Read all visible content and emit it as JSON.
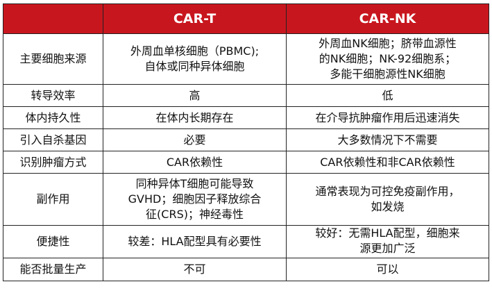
{
  "header": {
    "corner": "",
    "col1": "CAR-T",
    "col2": "CAR-NK"
  },
  "colors": {
    "header_bg": "#c8161e",
    "header_text": "#ffffff"
  },
  "rows": [
    {
      "label": "主要细胞来源",
      "cart": "外周血单核细胞（PBMC);\n自体或同种异体细胞",
      "carnk": "外周血NK细胞；脐带血源性\n的NK细胞；NK-92细胞系；\n多能干细胞源性NK细胞"
    },
    {
      "label": "转导效率",
      "cart": "高",
      "carnk": "低"
    },
    {
      "label": "体内持久性",
      "cart": "在体内长期存在",
      "carnk": "在介导抗肿瘤作用后迅速消失"
    },
    {
      "label": "引入自杀基因",
      "cart": "必要",
      "carnk": "大多数情况下不需要"
    },
    {
      "label": "识别肿瘤方式",
      "cart": "CAR依赖性",
      "carnk": "CAR依赖性和非CAR依赖性"
    },
    {
      "label": "副作用",
      "cart": "同种异体T细胞可能导致\nGVHD；细胞因子释放综合\n征(CRS)；神经毒性",
      "carnk": "通常表现为可控免疫副作用，\n如发烧"
    },
    {
      "label": "便捷性",
      "cart": "较差：HLA配型具有必要性",
      "carnk": "较好：无需HLA配型，细胞来\n源更加广泛"
    },
    {
      "label": "能否批量生产",
      "cart": "不可",
      "carnk": "可以"
    }
  ]
}
